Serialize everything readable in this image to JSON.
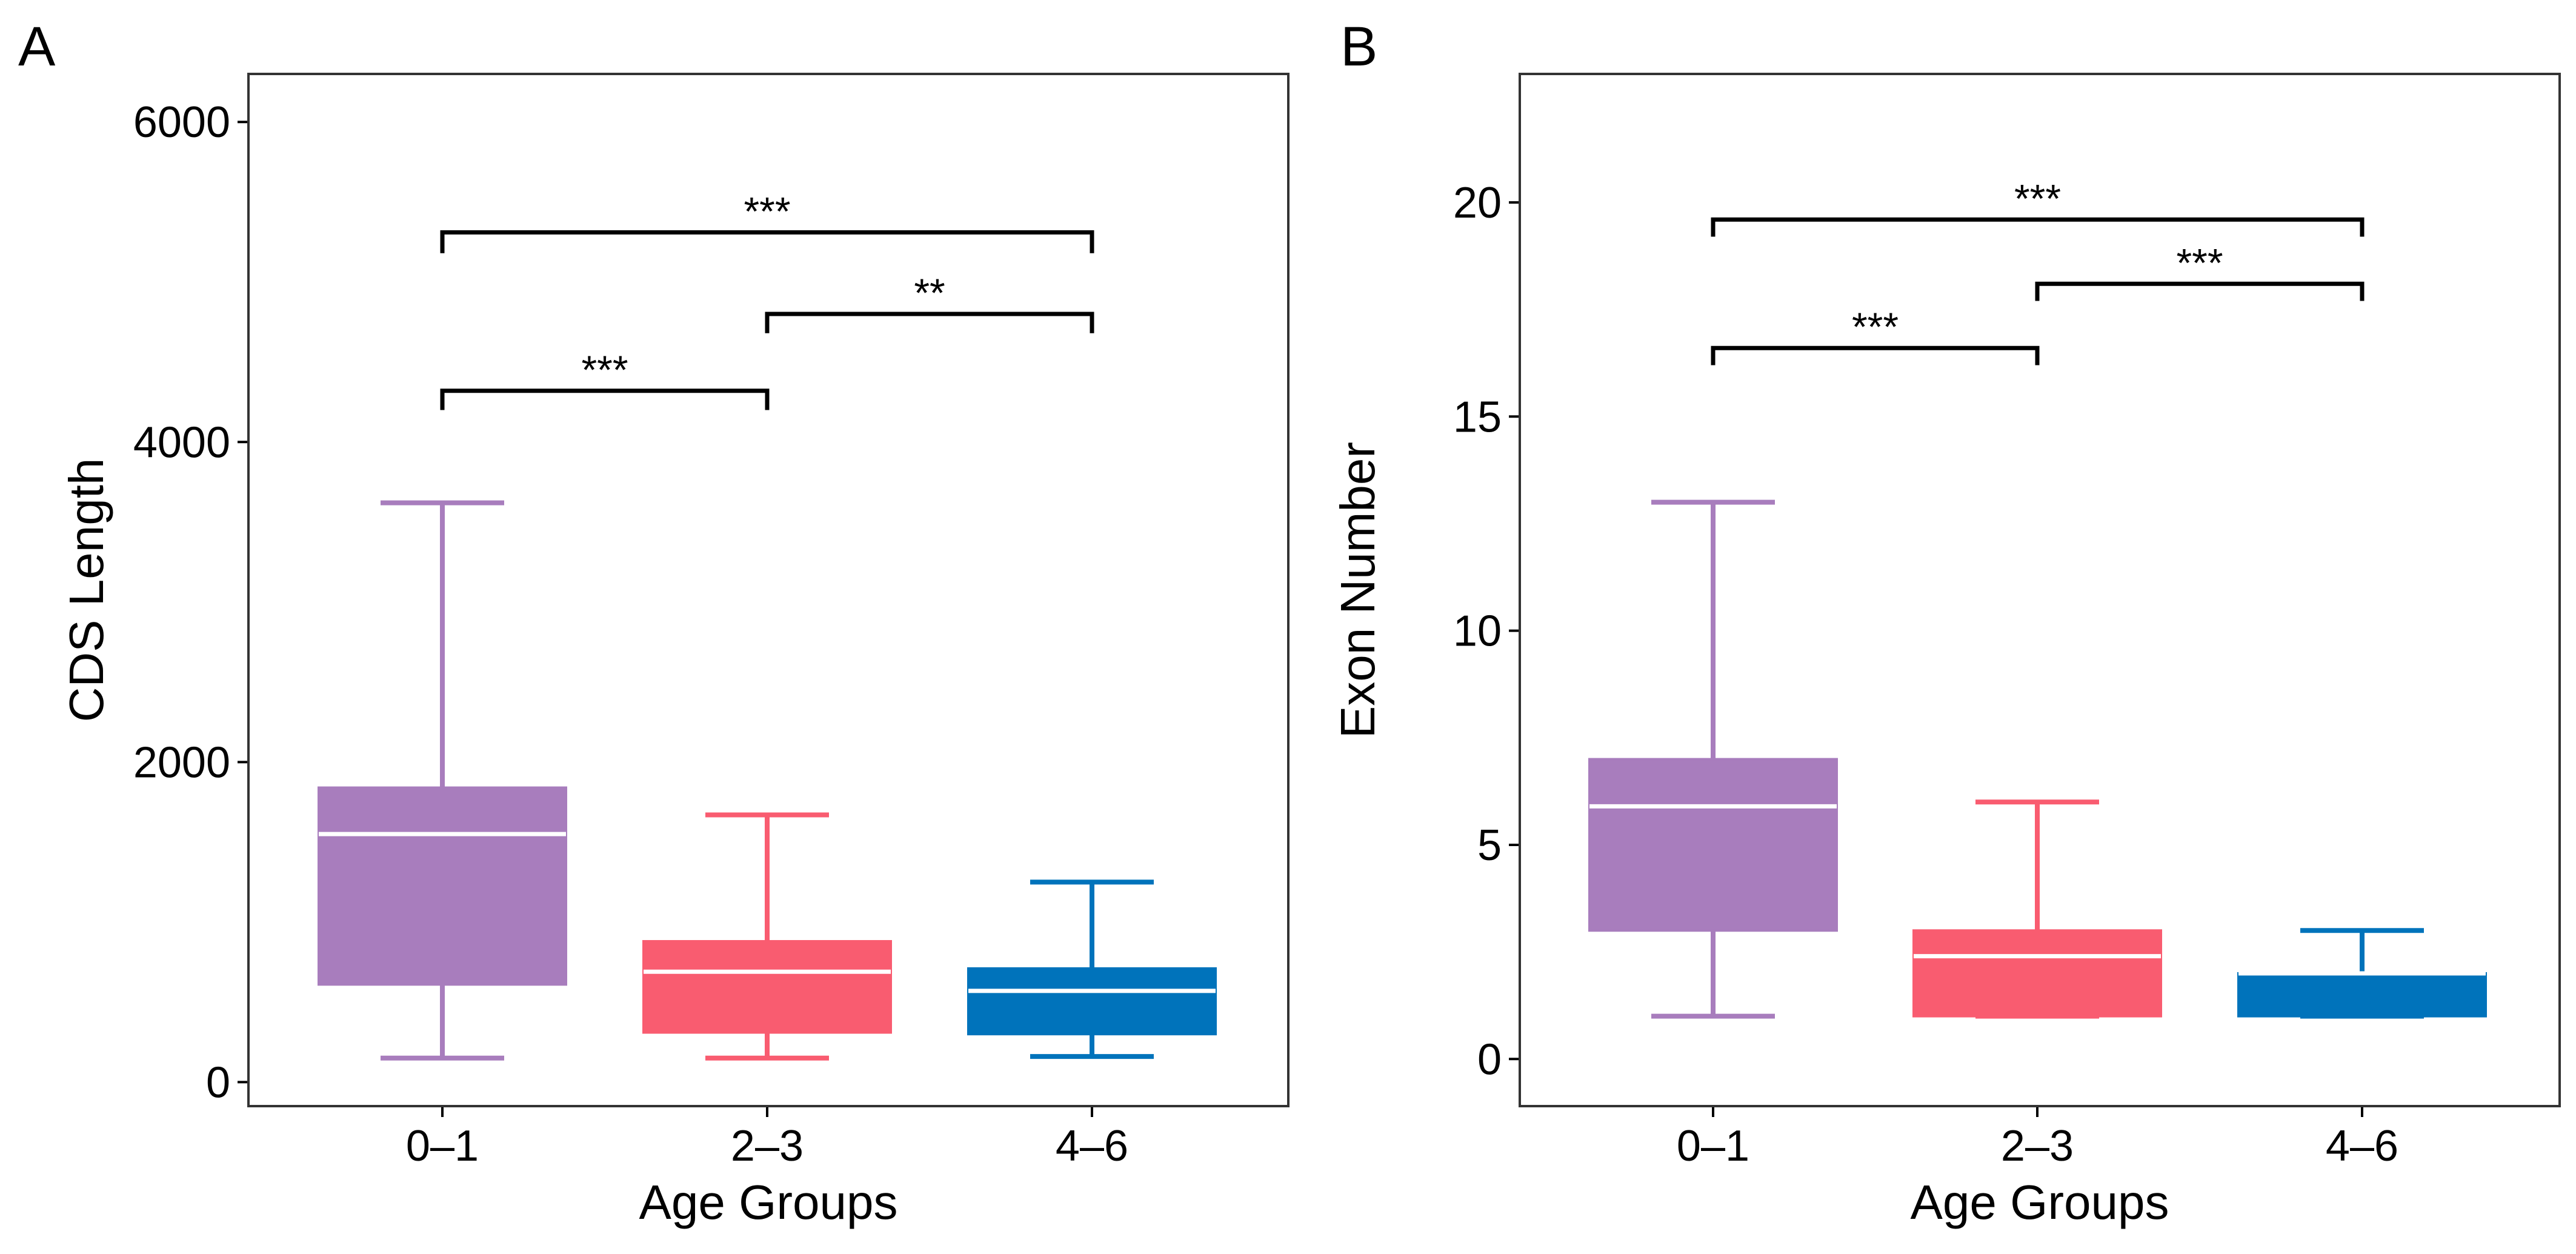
{
  "chart_data": [
    {
      "type": "boxplot",
      "panel_label": "A",
      "xlabel": "Age Groups",
      "ylabel": "CDS Length",
      "ylim": [
        -150,
        6300
      ],
      "yticks": [
        0,
        2000,
        4000,
        6000
      ],
      "categories": [
        "0–1",
        "2–3",
        "4–6"
      ],
      "colors": [
        "#A87DBD",
        "#F95C70",
        "#0073BB"
      ],
      "boxes": [
        {
          "group": "0–1",
          "whisker_low": 150,
          "q1": 610,
          "median": 1550,
          "q3": 1840,
          "whisker_high": 3620
        },
        {
          "group": "2–3",
          "whisker_low": 150,
          "q1": 310,
          "median": 690,
          "q3": 880,
          "whisker_high": 1670
        },
        {
          "group": "4–6",
          "whisker_low": 160,
          "q1": 300,
          "median": 570,
          "q3": 710,
          "whisker_high": 1250
        }
      ],
      "significance": [
        {
          "from": "0–1",
          "to": "2–3",
          "y": 4320,
          "tip": 4200,
          "label": "***"
        },
        {
          "from": "2–3",
          "to": "4–6",
          "y": 4800,
          "tip": 4680,
          "label": "**"
        },
        {
          "from": "0–1",
          "to": "4–6",
          "y": 5310,
          "tip": 5180,
          "label": "***"
        }
      ]
    },
    {
      "type": "boxplot",
      "panel_label": "B",
      "xlabel": "Age Groups",
      "ylabel": "Exon Number",
      "ylim": [
        -1.1,
        23.0
      ],
      "yticks": [
        0,
        5,
        10,
        15,
        20
      ],
      "categories": [
        "0–1",
        "2–3",
        "4–6"
      ],
      "colors": [
        "#A87DBD",
        "#F95C70",
        "#0073BB"
      ],
      "boxes": [
        {
          "group": "0–1",
          "whisker_low": 1,
          "q1": 3,
          "median": 5.9,
          "q3": 7,
          "whisker_high": 13
        },
        {
          "group": "2–3",
          "whisker_low": 1,
          "q1": 1,
          "median": 2.4,
          "q3": 3,
          "whisker_high": 6
        },
        {
          "group": "4–6",
          "whisker_low": 1,
          "q1": 1,
          "median": 2,
          "q3": 2,
          "whisker_high": 3
        }
      ],
      "significance": [
        {
          "from": "0–1",
          "to": "2–3",
          "y": 16.6,
          "tip": 16.2,
          "label": "***"
        },
        {
          "from": "2–3",
          "to": "4–6",
          "y": 18.1,
          "tip": 17.7,
          "label": "***"
        },
        {
          "from": "0–1",
          "to": "4–6",
          "y": 19.6,
          "tip": 19.2,
          "label": "***"
        }
      ]
    }
  ]
}
